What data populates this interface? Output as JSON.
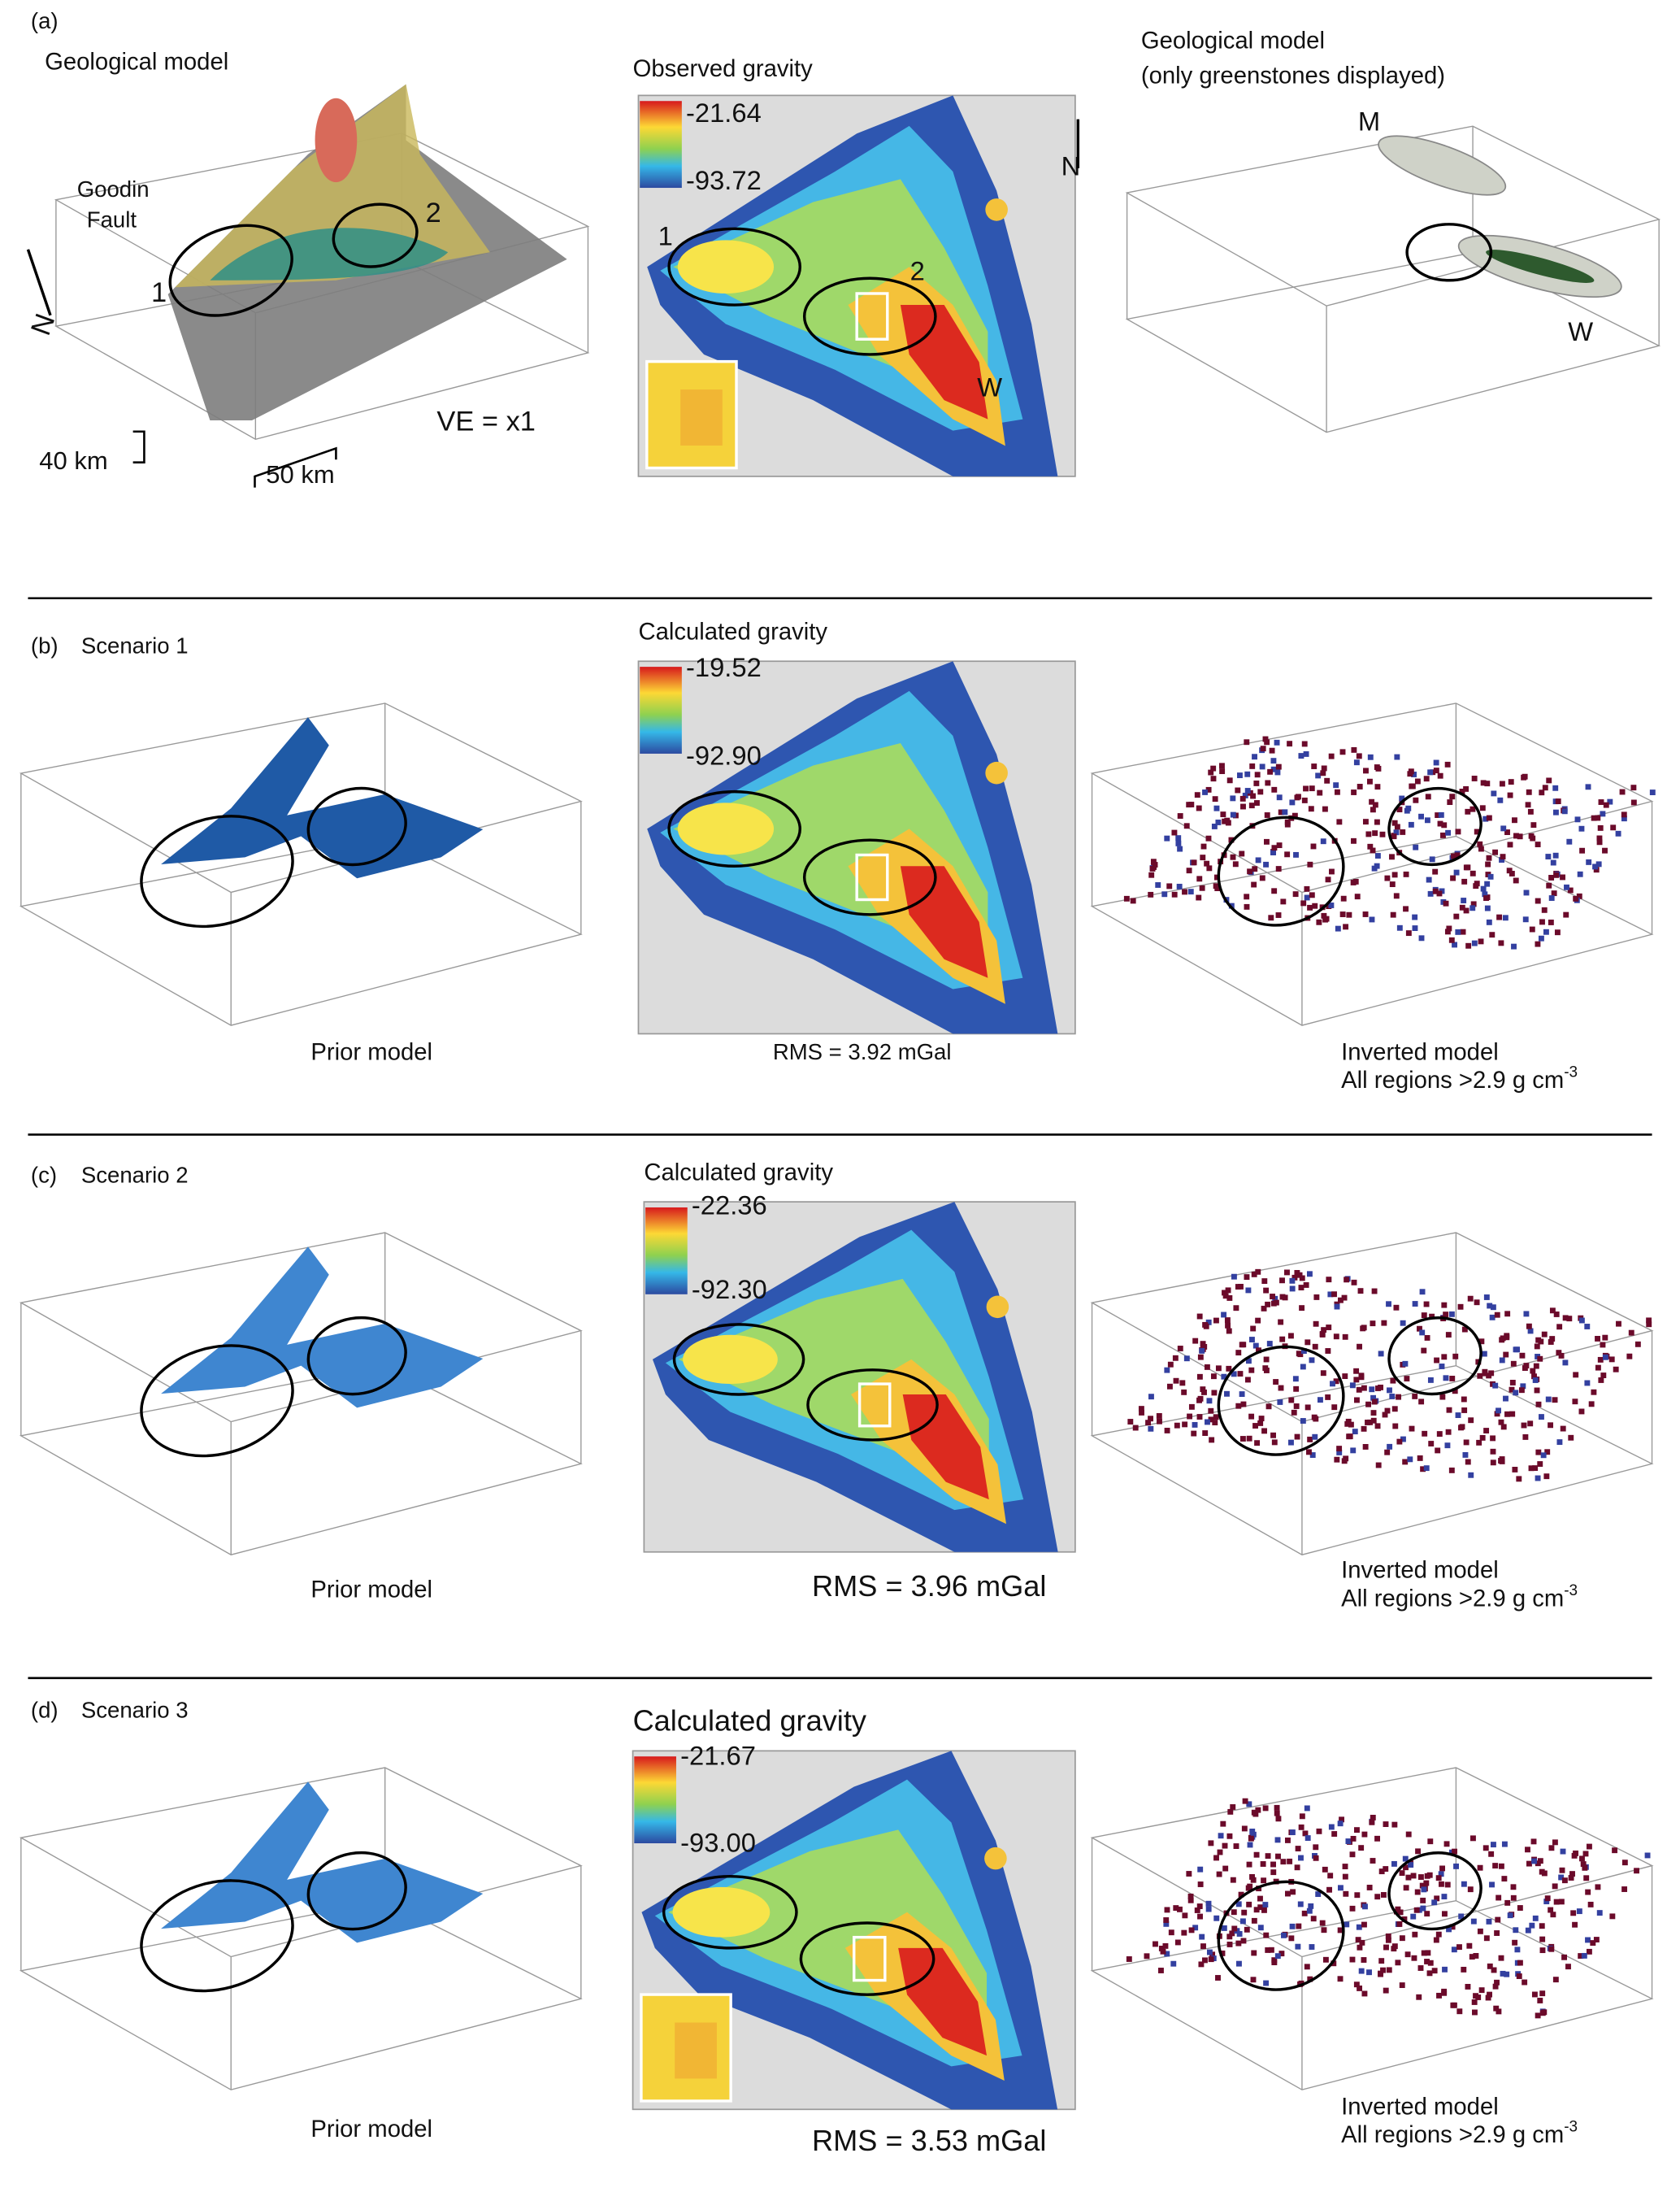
{
  "panels": [
    {
      "label": "(a)",
      "left": {
        "title": "Geological model",
        "annotations": [
          "Goodin",
          "Fault",
          "1",
          "2",
          "N",
          "40 km",
          "50 km",
          "VE = x1"
        ]
      },
      "middle": {
        "title": "Observed gravity",
        "colorbar": {
          "max": "-21.64",
          "min": "-93.72"
        },
        "annotations": [
          "1",
          "2",
          "W",
          "N"
        ]
      },
      "right": {
        "title": [
          "Geological model",
          "(only greenstones displayed)"
        ],
        "annotations": [
          "M",
          "W"
        ]
      }
    },
    {
      "label": "(b)",
      "title": "Scenario 1",
      "left": {
        "caption": "Prior model"
      },
      "middle": {
        "title": "Calculated gravity",
        "colorbar": {
          "max": "-19.52",
          "min": "-92.90"
        },
        "caption": "RMS = 3.92 mGal"
      },
      "right": {
        "caption": [
          "Inverted model",
          "All regions >2.9 g cm"
        ],
        "exponent": "-3"
      }
    },
    {
      "label": "(c)",
      "title": "Scenario 2",
      "left": {
        "caption": "Prior model"
      },
      "middle": {
        "title": "Calculated gravity",
        "colorbar": {
          "max": "-22.36",
          "min": "-92.30"
        },
        "caption": "RMS = 3.96 mGal"
      },
      "right": {
        "caption": [
          "Inverted model",
          "All regions >2.9 g cm"
        ],
        "exponent": "-3"
      }
    },
    {
      "label": "(d)",
      "title": "Scenario 3",
      "left": {
        "caption": "Prior model"
      },
      "middle": {
        "title": "Calculated gravity",
        "colorbar": {
          "max": "-21.67",
          "min": "-93.00"
        },
        "caption": "RMS = 3.53 mGal"
      },
      "right": {
        "caption": [
          "Inverted model",
          "All regions >2.9 g cm"
        ],
        "exponent": "-3"
      }
    }
  ]
}
